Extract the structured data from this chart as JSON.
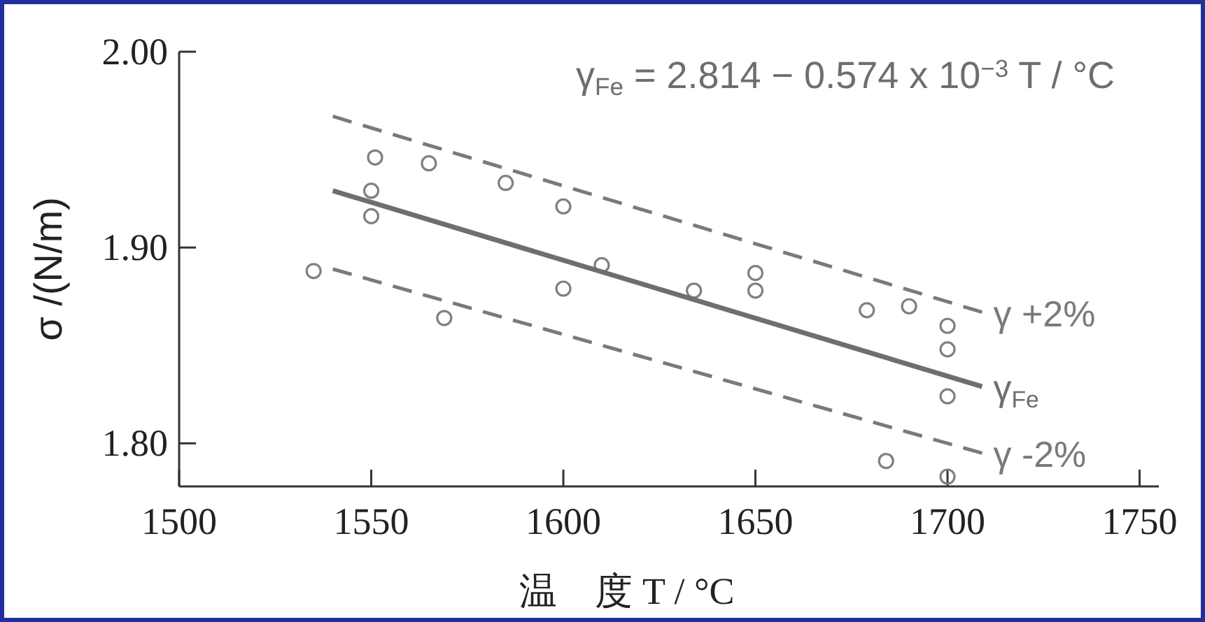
{
  "chart_data": {
    "type": "scatter",
    "xlabel": "温　度 T / °C",
    "ylabel": "σ /(N/m)",
    "xlim": [
      1500,
      1755
    ],
    "ylim": [
      1.778,
      2.0
    ],
    "xticks": [
      1500,
      1550,
      1600,
      1650,
      1700,
      1750
    ],
    "yticks": [
      {
        "value": 1.8,
        "label": "1.80"
      },
      {
        "value": 1.9,
        "label": "1.90"
      },
      {
        "value": 2.0,
        "label": "2.00"
      }
    ],
    "grid": false,
    "annotations": [
      "γ$_{Fe}$ = 2.814 − 0.574 x 10$^{−3}$ T / °C"
    ],
    "series": [
      {
        "marker": "circle",
        "color": "#808080",
        "x": [
          1535,
          1551,
          1550,
          1550,
          1565,
          1569,
          1585,
          1600,
          1600,
          1610,
          1634,
          1650,
          1650,
          1679,
          1690,
          1700,
          1700,
          1700,
          1684,
          1700
        ],
        "values": [
          1.888,
          1.946,
          1.929,
          1.916,
          1.943,
          1.864,
          1.933,
          1.921,
          1.879,
          1.891,
          1.878,
          1.887,
          1.878,
          1.868,
          1.87,
          1.86,
          1.848,
          1.824,
          1.791,
          1.783
        ]
      },
      {
        "type": "line",
        "name": "γ$_{Fe}$",
        "line_style": "solid",
        "color": "#6e6e6e",
        "x": [
          1540,
          1709
        ],
        "values": [
          1.929,
          1.829
        ]
      },
      {
        "type": "line",
        "name": "γ +2%",
        "line_style": "dashed",
        "color": "#7a7a7a",
        "x": [
          1540,
          1709
        ],
        "values": [
          1.967,
          1.867
        ]
      },
      {
        "type": "line",
        "name": "γ -2%",
        "line_style": "dashed",
        "color": "#7a7a7a",
        "x": [
          1540,
          1709
        ],
        "values": [
          1.889,
          1.795
        ]
      }
    ]
  }
}
